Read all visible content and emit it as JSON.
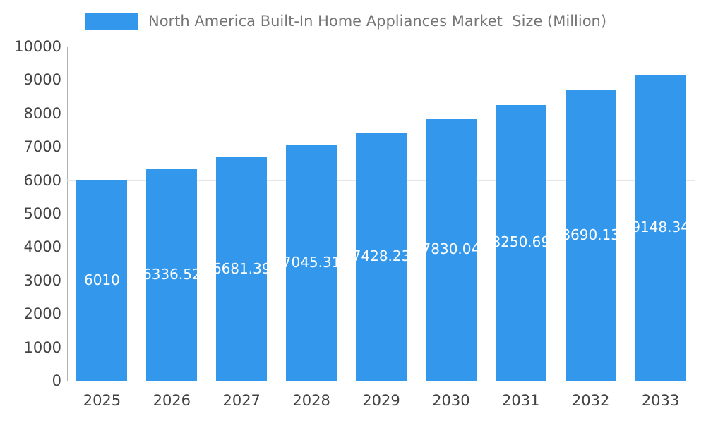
{
  "chart_data": {
    "type": "bar",
    "title": "North America Built-In Home Appliances Market  Size (Million)",
    "categories": [
      "2025",
      "2026",
      "2027",
      "2028",
      "2029",
      "2030",
      "2031",
      "2032",
      "2033"
    ],
    "values": [
      6010,
      6336.52,
      6681.39,
      7045.31,
      7428.23,
      7830.04,
      8250.69,
      8690.13,
      9148.34
    ],
    "value_labels": [
      "6010",
      "6336.52",
      "6681.39",
      "7045.31",
      "7428.23",
      "7830.04",
      "8250.69",
      "8690.13",
      "9148.34"
    ],
    "ylim": [
      0,
      10000
    ],
    "ytick_step": 1000,
    "ytick_labels": [
      "0",
      "1000",
      "2000",
      "3000",
      "4000",
      "5000",
      "6000",
      "7000",
      "8000",
      "9000",
      "10000"
    ],
    "grid": true,
    "legend_position": "top",
    "colors": {
      "bar": "#3398EC",
      "bar_value_label": "#FFFFFF",
      "title_text": "#757575",
      "tick_text": "#424242",
      "gridline": "#E6E6E6",
      "axis_line": "#B0B0B0",
      "background": "#FFFFFF"
    }
  }
}
